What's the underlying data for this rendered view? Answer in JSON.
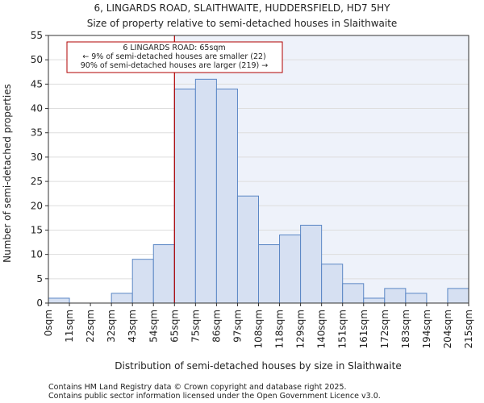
{
  "chart_data": {
    "type": "bar",
    "title": "6, LINGARDS ROAD, SLAITHWAITE, HUDDERSFIELD, HD7 5HY",
    "subtitle": "Size of property relative to semi-detached houses in Slaithwaite",
    "xlabel": "Distribution of semi-detached houses by size in Slaithwaite",
    "ylabel": "Number of semi-detached properties",
    "ylim": [
      0,
      55
    ],
    "yticks": [
      0,
      5,
      10,
      15,
      20,
      25,
      30,
      35,
      40,
      45,
      50,
      55
    ],
    "tick_labels": [
      "0sqm",
      "11sqm",
      "22sqm",
      "32sqm",
      "43sqm",
      "54sqm",
      "65sqm",
      "75sqm",
      "86sqm",
      "97sqm",
      "108sqm",
      "118sqm",
      "129sqm",
      "140sqm",
      "151sqm",
      "161sqm",
      "172sqm",
      "183sqm",
      "194sqm",
      "204sqm",
      "215sqm"
    ],
    "values": [
      1,
      0,
      0,
      2,
      9,
      12,
      44,
      46,
      44,
      22,
      12,
      14,
      16,
      8,
      4,
      1,
      3,
      2,
      0,
      3
    ],
    "marker_bin": 6,
    "annotation": {
      "line1": "6 LINGARDS ROAD: 65sqm",
      "line2": "← 9% of semi-detached houses are smaller (22)",
      "line3": "90% of semi-detached houses are larger (219) →"
    },
    "colors": {
      "bar_fill": "#d6e0f2",
      "bar_edge": "#5b87c5",
      "highlight_bg": "#eef2fa",
      "marker": "#b00000",
      "grid": "#dddddd"
    }
  },
  "footer": {
    "line1": "Contains HM Land Registry data © Crown copyright and database right 2025.",
    "line2": "Contains public sector information licensed under the Open Government Licence v3.0."
  }
}
